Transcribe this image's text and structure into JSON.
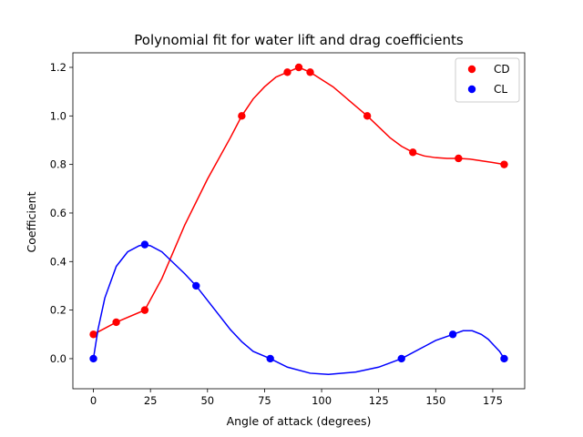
{
  "chart_data": {
    "type": "line",
    "title": "Polynomial fit for water lift and drag coefficients",
    "xlabel": "Angle of attack (degrees)",
    "ylabel": "Coefficient",
    "xlim": [
      -9,
      189
    ],
    "ylim": [
      -0.124,
      1.26
    ],
    "xticks": [
      0,
      25,
      50,
      75,
      100,
      125,
      150,
      175
    ],
    "yticks": [
      0.0,
      0.2,
      0.4,
      0.6,
      0.8,
      1.0,
      1.2
    ],
    "xtick_labels": [
      "0",
      "25",
      "50",
      "75",
      "100",
      "125",
      "150",
      "175"
    ],
    "ytick_labels": [
      "0.0",
      "0.2",
      "0.4",
      "0.6",
      "0.8",
      "1.0",
      "1.2"
    ],
    "grid": false,
    "legend_position": "top-right",
    "series": [
      {
        "name": "CD",
        "color": "#ff0000",
        "points": [
          [
            0,
            0.1
          ],
          [
            10,
            0.15
          ],
          [
            22.5,
            0.2
          ],
          [
            65,
            1.0
          ],
          [
            85,
            1.18
          ],
          [
            90,
            1.2
          ],
          [
            95,
            1.18
          ],
          [
            120,
            1.0
          ],
          [
            140,
            0.85
          ],
          [
            160,
            0.825
          ],
          [
            180,
            0.8
          ]
        ],
        "fit": [
          [
            0,
            0.1
          ],
          [
            10,
            0.15
          ],
          [
            22.5,
            0.2
          ],
          [
            30,
            0.33
          ],
          [
            40,
            0.55
          ],
          [
            50,
            0.74
          ],
          [
            60,
            0.91
          ],
          [
            65,
            1.0
          ],
          [
            70,
            1.07
          ],
          [
            75,
            1.12
          ],
          [
            80,
            1.16
          ],
          [
            85,
            1.18
          ],
          [
            90,
            1.2
          ],
          [
            95,
            1.18
          ],
          [
            100,
            1.15
          ],
          [
            105,
            1.12
          ],
          [
            110,
            1.08
          ],
          [
            115,
            1.04
          ],
          [
            120,
            1.0
          ],
          [
            125,
            0.955
          ],
          [
            130,
            0.91
          ],
          [
            135,
            0.875
          ],
          [
            140,
            0.85
          ],
          [
            145,
            0.835
          ],
          [
            150,
            0.828
          ],
          [
            155,
            0.825
          ],
          [
            160,
            0.825
          ],
          [
            165,
            0.822
          ],
          [
            170,
            0.815
          ],
          [
            175,
            0.808
          ],
          [
            180,
            0.8
          ]
        ]
      },
      {
        "name": "CL",
        "color": "#0000ff",
        "points": [
          [
            0,
            0.0
          ],
          [
            22.5,
            0.47
          ],
          [
            45,
            0.3
          ],
          [
            77.5,
            0.0
          ],
          [
            135,
            0.0
          ],
          [
            157.5,
            0.1
          ],
          [
            180,
            0.0
          ]
        ],
        "fit": [
          [
            0,
            0.0
          ],
          [
            2,
            0.12
          ],
          [
            5,
            0.25
          ],
          [
            10,
            0.38
          ],
          [
            15,
            0.44
          ],
          [
            20,
            0.465
          ],
          [
            22.5,
            0.47
          ],
          [
            25,
            0.465
          ],
          [
            30,
            0.44
          ],
          [
            35,
            0.395
          ],
          [
            40,
            0.35
          ],
          [
            45,
            0.3
          ],
          [
            50,
            0.24
          ],
          [
            55,
            0.18
          ],
          [
            60,
            0.12
          ],
          [
            65,
            0.07
          ],
          [
            70,
            0.03
          ],
          [
            77.5,
            0.0
          ],
          [
            85,
            -0.035
          ],
          [
            95,
            -0.06
          ],
          [
            103,
            -0.065
          ],
          [
            115,
            -0.055
          ],
          [
            125,
            -0.035
          ],
          [
            135,
            0.0
          ],
          [
            145,
            0.05
          ],
          [
            150,
            0.075
          ],
          [
            157.5,
            0.1
          ],
          [
            162,
            0.115
          ],
          [
            166,
            0.115
          ],
          [
            170,
            0.1
          ],
          [
            173,
            0.08
          ],
          [
            176,
            0.05
          ],
          [
            178,
            0.03
          ],
          [
            180,
            0.0
          ]
        ]
      }
    ]
  }
}
